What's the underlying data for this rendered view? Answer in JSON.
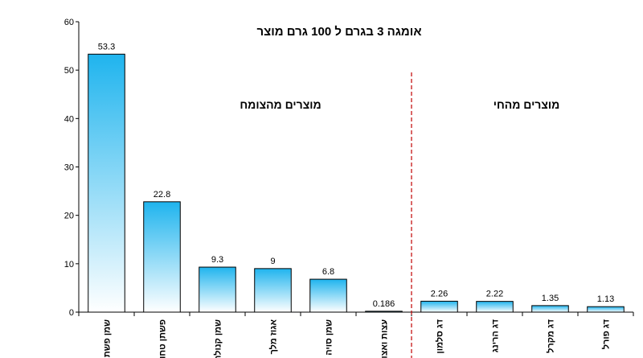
{
  "chart_data": {
    "type": "bar",
    "title": "אומגה 3 בגרם ל 100 גרם מוצר",
    "categories": [
      "שמן פשתן",
      "פשתן טחון",
      "שמן קנולה",
      "אגוז מלך",
      "שמן סויה",
      "עצות ואצות",
      "דג סלמון",
      "דג הרינג",
      "דג מקרל",
      "דג פורל"
    ],
    "values": [
      53.3,
      22.8,
      9.3,
      9,
      6.8,
      0.186,
      2.26,
      2.22,
      1.35,
      1.13
    ],
    "value_labels": [
      "53.3",
      "22.8",
      "9.3",
      "9",
      "6.8",
      "0.186",
      "2.26",
      "2.22",
      "1.35",
      "1.13"
    ],
    "ylim": [
      0,
      60
    ],
    "yticks": [
      "0",
      "10",
      "20",
      "30",
      "40",
      "50",
      "60"
    ],
    "grid": false,
    "legend": "none",
    "annotations": {
      "plant_label": "מוצרים מהצומח",
      "animal_label": "מוצרים מהחי"
    },
    "colors": {
      "bar_top": "#1fb4ee",
      "bar_bottom": "#ffffff",
      "bar_stroke": "#000000",
      "divider": "#c00000"
    }
  }
}
